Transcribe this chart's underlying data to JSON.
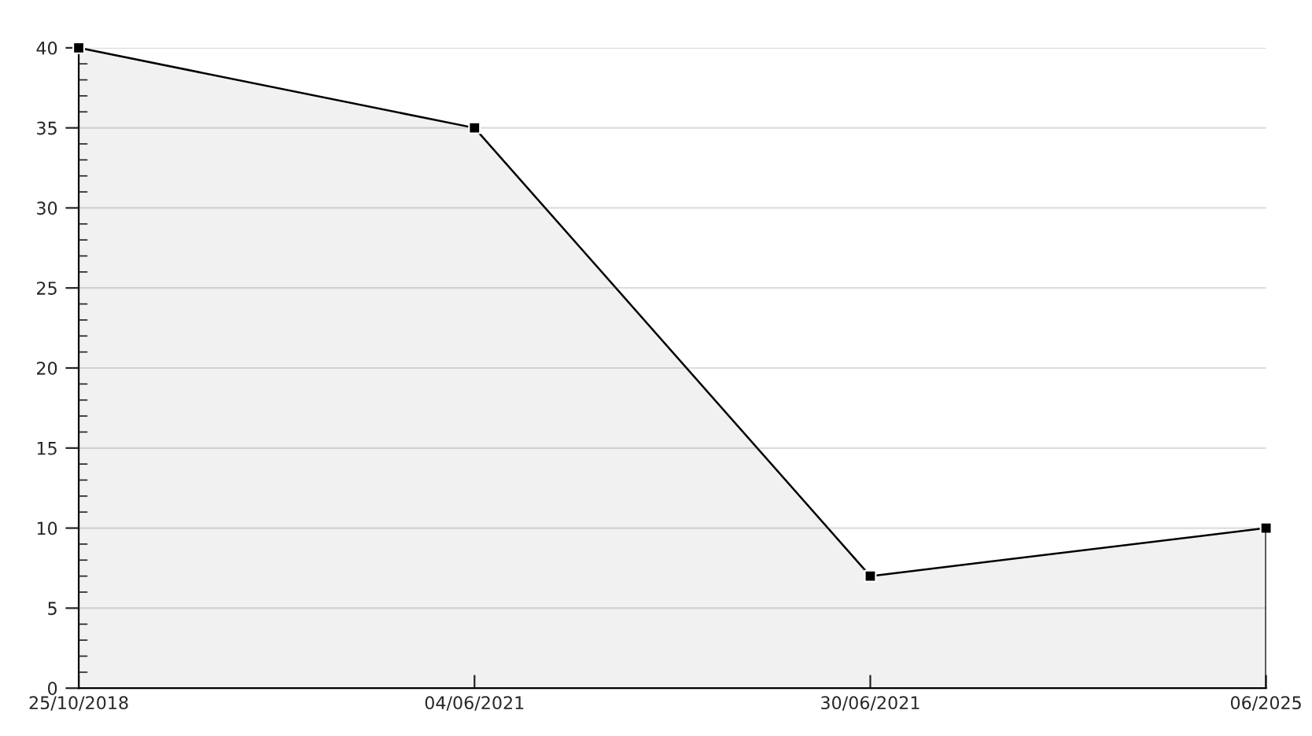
{
  "chart_data": {
    "type": "area",
    "categories": [
      "25/10/2018",
      "04/06/2021",
      "30/06/2021",
      "06/2025"
    ],
    "series": [
      {
        "color": "#000000",
        "values": [
          40,
          35,
          7,
          10
        ]
      }
    ],
    "ylim": [
      0,
      40
    ],
    "yticks": [
      0,
      5,
      10,
      15,
      20,
      25,
      30,
      35,
      40
    ],
    "grid": "y",
    "marker": "square",
    "line_style": "solid",
    "legend": false
  }
}
